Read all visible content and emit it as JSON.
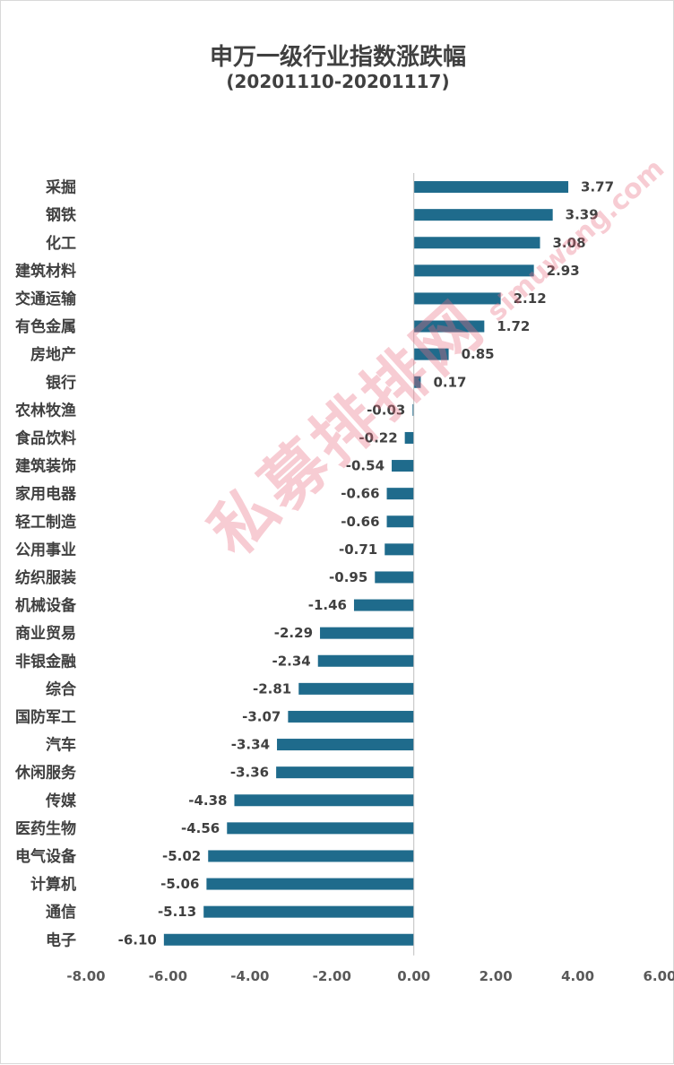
{
  "chart_data": {
    "type": "bar",
    "orientation": "horizontal",
    "title": "申万一级行业指数涨跌幅",
    "subtitle": "(20201110-20201117)",
    "xlabel": "",
    "ylabel": "",
    "xlim": [
      -8,
      6
    ],
    "x_ticks": [
      "-8.00",
      "-6.00",
      "-4.00",
      "-2.00",
      "0.00",
      "2.00",
      "4.00",
      "6.00"
    ],
    "grid": false,
    "bar_color": "#1f6b8c",
    "categories": [
      "采掘",
      "钢铁",
      "化工",
      "建筑材料",
      "交通运输",
      "有色金属",
      "房地产",
      "银行",
      "农林牧渔",
      "食品饮料",
      "建筑装饰",
      "家用电器",
      "轻工制造",
      "公用事业",
      "纺织服装",
      "机械设备",
      "商业贸易",
      "非银金融",
      "综合",
      "国防军工",
      "汽车",
      "休闲服务",
      "传媒",
      "医药生物",
      "电气设备",
      "计算机",
      "通信",
      "电子"
    ],
    "values": [
      3.77,
      3.39,
      3.08,
      2.93,
      2.12,
      1.72,
      0.85,
      0.17,
      -0.03,
      -0.22,
      -0.54,
      -0.66,
      -0.66,
      -0.71,
      -0.95,
      -1.46,
      -2.29,
      -2.34,
      -2.81,
      -3.07,
      -3.34,
      -3.36,
      -4.38,
      -4.56,
      -5.02,
      -5.06,
      -5.13,
      -6.1
    ],
    "data_labels": [
      "3.77",
      "3.39",
      "3.08",
      "2.93",
      "2.12",
      "1.72",
      "0.85",
      "0.17",
      "-0.03",
      "-0.22",
      "-0.54",
      "-0.66",
      "-0.66",
      "-0.71",
      "-0.95",
      "-1.46",
      "-2.29",
      "-2.34",
      "-2.81",
      "-3.07",
      "-3.34",
      "-3.36",
      "-4.38",
      "-4.56",
      "-5.02",
      "-5.06",
      "-5.13",
      "-6.10"
    ]
  },
  "watermark": {
    "text": "私募排排网",
    "url": "simuwang.com"
  }
}
